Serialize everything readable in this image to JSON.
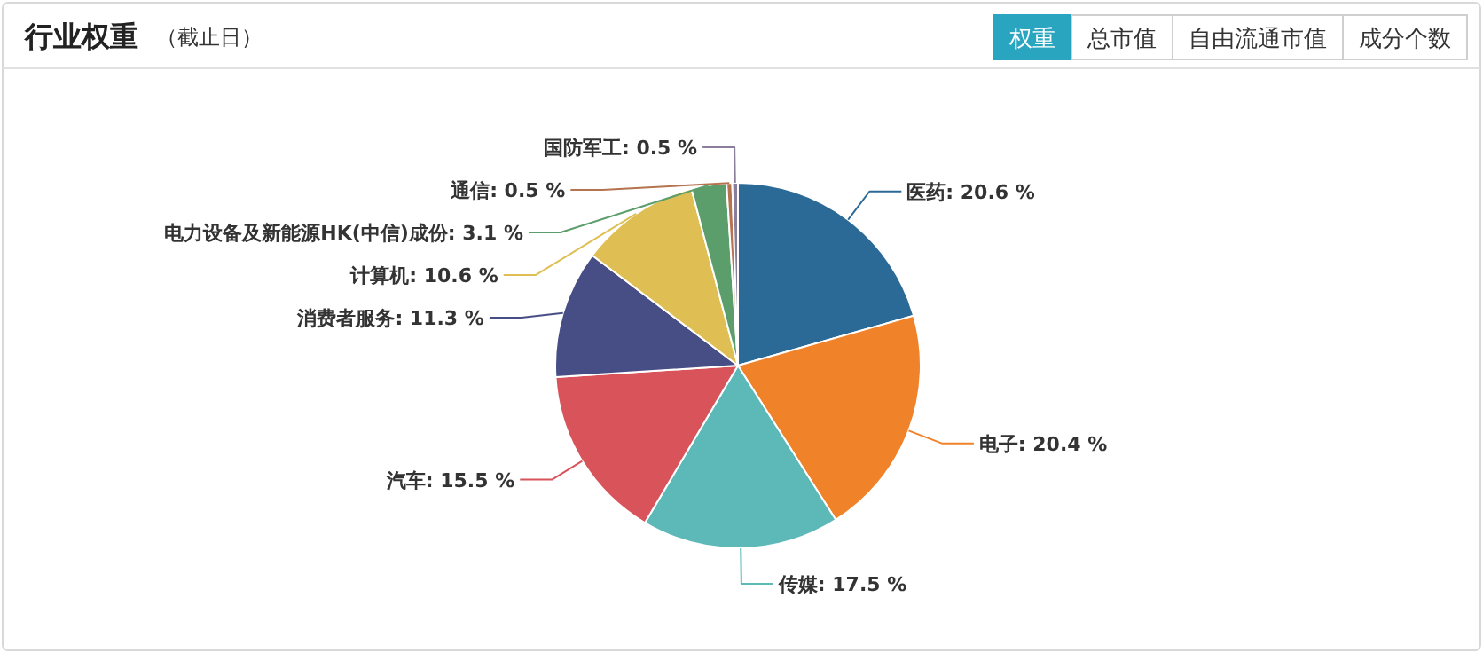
{
  "chart_data": {
    "type": "pie",
    "title": "行业权重",
    "subtitle": "（截止日）",
    "categories": [
      "医药",
      "电子",
      "传媒",
      "汽车",
      "消费者服务",
      "计算机",
      "电力设备及新能源HK(中信)成份",
      "通信",
      "国防军工"
    ],
    "values": [
      20.6,
      20.4,
      17.5,
      15.5,
      11.3,
      10.6,
      3.1,
      0.5,
      0.5
    ],
    "colors": [
      "#2b6a96",
      "#f0822a",
      "#5db8b8",
      "#d8545a",
      "#474d85",
      "#dfbf53",
      "#5b9d6b",
      "#b5734f",
      "#8b7e9c"
    ],
    "value_labels": [
      "20.6 %",
      "20.4 %",
      "17.5 %",
      "15.5 %",
      "11.3 %",
      "10.6 %",
      "3.1 %",
      "0.5 %",
      "0.5 %"
    ],
    "annotations": [
      "权重",
      "总市值",
      "自由流通市值",
      "成分个数"
    ]
  }
}
